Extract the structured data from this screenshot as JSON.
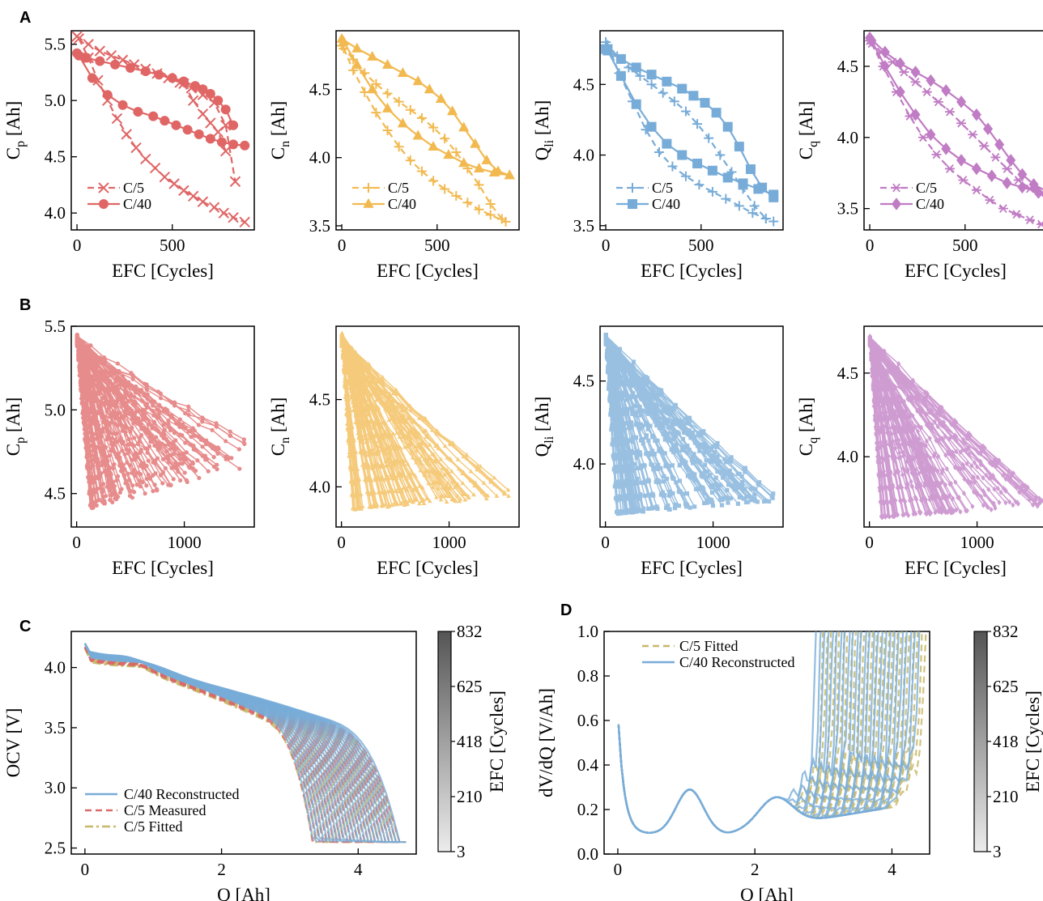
{
  "colors": {
    "red": "#e06666",
    "orange": "#f2b950",
    "blue": "#78acd8",
    "purple": "#c07cc4",
    "olive": "#c8b86a",
    "measured_red": "#d96a6a"
  },
  "chart_data": [
    {
      "id": "A1",
      "panel_label": "A",
      "type": "line",
      "xlabel": "EFC [Cycles]",
      "ylabel_main": "C",
      "ylabel_sub": "p",
      "ylabel_unit": "[Ah]",
      "xlim": [
        -30,
        930
      ],
      "ylim": [
        3.85,
        5.62
      ],
      "xticks": [
        0,
        500
      ],
      "xticklabels": [
        "0",
        "500"
      ],
      "yticks": [
        4.0,
        4.5,
        5.0,
        5.5
      ],
      "yticklabels": [
        "4.0",
        "4.5",
        "5.0",
        "5.5"
      ],
      "color": "red",
      "legend": "lower-left",
      "series": [
        {
          "name": "C/5",
          "style": "dashed",
          "marker": "x",
          "x": [
            0,
            60,
            120,
            180,
            240,
            300,
            360,
            420,
            480,
            540,
            600,
            660,
            720,
            780,
            830
          ],
          "y": [
            5.57,
            5.5,
            5.44,
            5.4,
            5.36,
            5.32,
            5.28,
            5.24,
            5.2,
            5.16,
            5.11,
            5.05,
            4.98,
            4.78,
            4.28
          ],
          "group": 0
        },
        {
          "name": "",
          "style": "dashed",
          "marker": "x",
          "x": [
            10,
            60,
            110,
            160,
            210,
            260,
            310,
            360,
            410,
            460,
            510,
            560,
            610,
            660,
            720,
            770,
            820,
            880
          ],
          "y": [
            5.55,
            5.38,
            5.18,
            5.0,
            4.84,
            4.7,
            4.58,
            4.48,
            4.4,
            4.32,
            4.26,
            4.2,
            4.15,
            4.1,
            4.05,
            4.0,
            3.96,
            3.92
          ],
          "group": 0
        },
        {
          "name": "",
          "style": "dashed",
          "marker": "x",
          "x": [
            560,
            610,
            660,
            700,
            740,
            780
          ],
          "y": [
            5.15,
            5.0,
            4.88,
            4.8,
            4.72,
            4.55
          ],
          "group": 0
        },
        {
          "name": "C/40",
          "style": "solid",
          "marker": "o",
          "x": [
            0,
            50,
            120,
            200,
            280,
            360,
            430,
            500,
            560,
            620,
            660,
            700,
            740,
            780,
            820
          ],
          "y": [
            5.42,
            5.38,
            5.35,
            5.32,
            5.29,
            5.26,
            5.23,
            5.2,
            5.17,
            5.13,
            5.1,
            5.06,
            5.0,
            4.92,
            4.78
          ],
          "group": 1
        },
        {
          "name": "",
          "style": "solid",
          "marker": "o",
          "x": [
            10,
            80,
            160,
            240,
            320,
            400,
            460,
            520,
            580,
            640,
            700,
            760,
            820,
            880
          ],
          "y": [
            5.4,
            5.2,
            5.05,
            4.96,
            4.9,
            4.86,
            4.82,
            4.78,
            4.74,
            4.7,
            4.66,
            4.63,
            4.61,
            4.6
          ],
          "group": 1
        }
      ]
    },
    {
      "id": "A2",
      "type": "line",
      "xlabel": "EFC [Cycles]",
      "ylabel_main": "C",
      "ylabel_sub": "n",
      "ylabel_unit": "[Ah]",
      "xlim": [
        -30,
        930
      ],
      "ylim": [
        3.47,
        4.93
      ],
      "xticks": [
        0,
        500
      ],
      "xticklabels": [
        "0",
        "500"
      ],
      "yticks": [
        3.5,
        4.0,
        4.5
      ],
      "yticklabels": [
        "3.5",
        "4.0",
        "4.5"
      ],
      "color": "orange",
      "legend": "lower-left",
      "series": [
        {
          "name": "C/5",
          "style": "dashed",
          "marker": "+",
          "x": [
            0,
            60,
            120,
            180,
            240,
            300,
            360,
            420,
            480,
            540,
            600,
            660,
            720,
            780,
            840
          ],
          "y": [
            4.82,
            4.72,
            4.62,
            4.54,
            4.47,
            4.41,
            4.35,
            4.29,
            4.22,
            4.14,
            4.04,
            3.92,
            3.8,
            3.66,
            3.55
          ],
          "group": 0
        },
        {
          "name": "",
          "style": "dashed",
          "marker": "+",
          "x": [
            10,
            60,
            120,
            180,
            240,
            300,
            360,
            420,
            480,
            540,
            600,
            660,
            720,
            780,
            860
          ],
          "y": [
            4.8,
            4.64,
            4.48,
            4.33,
            4.2,
            4.08,
            3.98,
            3.9,
            3.83,
            3.77,
            3.72,
            3.67,
            3.62,
            3.58,
            3.53
          ],
          "group": 0
        },
        {
          "name": "C/40",
          "style": "solid",
          "marker": "^",
          "x": [
            0,
            80,
            160,
            240,
            320,
            400,
            460,
            520,
            580,
            640,
            700,
            760,
            820,
            880
          ],
          "y": [
            4.87,
            4.8,
            4.74,
            4.68,
            4.62,
            4.56,
            4.5,
            4.43,
            4.34,
            4.22,
            4.1,
            3.98,
            3.9,
            3.87
          ],
          "group": 1
        },
        {
          "name": "",
          "style": "solid",
          "marker": "^",
          "x": [
            10,
            80,
            160,
            240,
            320,
            400,
            480,
            560,
            640,
            720,
            800,
            880
          ],
          "y": [
            4.85,
            4.68,
            4.5,
            4.36,
            4.25,
            4.16,
            4.08,
            4.02,
            3.96,
            3.92,
            3.89,
            3.87
          ],
          "group": 1
        }
      ]
    },
    {
      "id": "A3",
      "type": "line",
      "xlabel": "EFC [Cycles]",
      "ylabel_main": "Q",
      "ylabel_sub": "li",
      "ylabel_unit": "[Ah]",
      "xlim": [
        -30,
        930
      ],
      "ylim": [
        3.47,
        4.88
      ],
      "xticks": [
        0,
        500
      ],
      "xticklabels": [
        "0",
        "500"
      ],
      "yticks": [
        3.5,
        4.0,
        4.5
      ],
      "yticklabels": [
        "3.5",
        "4.0",
        "4.5"
      ],
      "color": "blue",
      "legend": "lower-left",
      "series": [
        {
          "name": "C/5",
          "style": "dashed",
          "marker": "+",
          "x": [
            0,
            60,
            120,
            180,
            240,
            300,
            360,
            420,
            480,
            540,
            600,
            660,
            720,
            780,
            840
          ],
          "y": [
            4.8,
            4.7,
            4.62,
            4.56,
            4.5,
            4.44,
            4.38,
            4.31,
            4.22,
            4.12,
            4.0,
            3.88,
            3.76,
            3.64,
            3.55
          ],
          "group": 0
        },
        {
          "name": "",
          "style": "dashed",
          "marker": "+",
          "x": [
            10,
            70,
            140,
            210,
            280,
            350,
            420,
            490,
            560,
            630,
            700,
            770,
            840,
            880
          ],
          "y": [
            4.78,
            4.58,
            4.38,
            4.18,
            4.02,
            3.92,
            3.85,
            3.79,
            3.74,
            3.69,
            3.64,
            3.59,
            3.55,
            3.53
          ],
          "group": 0
        },
        {
          "name": "C/40",
          "style": "solid",
          "marker": "s",
          "x": [
            0,
            80,
            160,
            240,
            320,
            400,
            460,
            520,
            580,
            640,
            700,
            760,
            820,
            880
          ],
          "y": [
            4.75,
            4.68,
            4.62,
            4.57,
            4.52,
            4.47,
            4.42,
            4.37,
            4.3,
            4.2,
            4.06,
            3.9,
            3.77,
            3.7
          ],
          "group": 1
        },
        {
          "name": "",
          "style": "solid",
          "marker": "s",
          "x": [
            10,
            80,
            160,
            240,
            320,
            400,
            480,
            560,
            640,
            720,
            800,
            880
          ],
          "y": [
            4.74,
            4.56,
            4.36,
            4.2,
            4.08,
            4.0,
            3.94,
            3.89,
            3.84,
            3.8,
            3.76,
            3.72
          ],
          "group": 1
        }
      ]
    },
    {
      "id": "A4",
      "type": "line",
      "xlabel": "EFC [Cycles]",
      "ylabel_main": "C",
      "ylabel_sub": "q",
      "ylabel_unit": "[Ah]",
      "xlim": [
        -30,
        930
      ],
      "ylim": [
        3.35,
        4.75
      ],
      "xticks": [
        0,
        500
      ],
      "xticklabels": [
        "0",
        "500"
      ],
      "yticks": [
        3.5,
        4.0,
        4.5
      ],
      "yticklabels": [
        "3.5",
        "4.0",
        "4.5"
      ],
      "color": "purple",
      "legend": "lower-left",
      "series": [
        {
          "name": "C/5",
          "style": "dashed",
          "marker": "*",
          "x": [
            0,
            60,
            120,
            180,
            240,
            300,
            360,
            420,
            480,
            540,
            600,
            660,
            720,
            780,
            840,
            900
          ],
          "y": [
            4.68,
            4.6,
            4.53,
            4.46,
            4.39,
            4.32,
            4.25,
            4.18,
            4.1,
            4.02,
            3.94,
            3.86,
            3.78,
            3.7,
            3.64,
            3.6
          ],
          "group": 0
        },
        {
          "name": "",
          "style": "dashed",
          "marker": "*",
          "x": [
            10,
            70,
            140,
            210,
            280,
            350,
            420,
            490,
            560,
            630,
            700,
            770,
            840,
            900
          ],
          "y": [
            4.66,
            4.5,
            4.32,
            4.15,
            4.0,
            3.88,
            3.78,
            3.7,
            3.63,
            3.56,
            3.5,
            3.46,
            3.42,
            3.39
          ],
          "group": 0
        },
        {
          "name": "C/40",
          "style": "solid",
          "marker": "D",
          "x": [
            0,
            80,
            160,
            240,
            320,
            400,
            480,
            560,
            620,
            680,
            740,
            800,
            860,
            930
          ],
          "y": [
            4.7,
            4.6,
            4.52,
            4.46,
            4.4,
            4.33,
            4.25,
            4.16,
            4.06,
            3.95,
            3.84,
            3.74,
            3.67,
            3.62
          ],
          "group": 1
        },
        {
          "name": "",
          "style": "solid",
          "marker": "D",
          "x": [
            10,
            80,
            160,
            240,
            320,
            400,
            480,
            560,
            640,
            720,
            800,
            880,
            930
          ],
          "y": [
            4.68,
            4.5,
            4.32,
            4.16,
            4.02,
            3.92,
            3.84,
            3.78,
            3.73,
            3.68,
            3.65,
            3.62,
            3.6
          ],
          "group": 1
        }
      ]
    },
    {
      "id": "B1",
      "panel_label": "B",
      "type": "line",
      "xlabel": "EFC [Cycles]",
      "ylabel_main": "C",
      "ylabel_sub": "p",
      "ylabel_unit": "[Ah]",
      "xlim": [
        -50,
        1650
      ],
      "ylim": [
        4.3,
        5.5
      ],
      "xticks": [
        0,
        1000
      ],
      "xticklabels": [
        "0",
        "1000"
      ],
      "yticks": [
        4.5,
        5.0,
        5.5
      ],
      "yticklabels": [
        "4.5",
        "5.0",
        "5.5"
      ],
      "color": "red",
      "marker": "o",
      "fan": {
        "count": 90,
        "x0": 0,
        "y0_range": [
          5.38,
          5.45
        ],
        "end_x_range": [
          120,
          1560
        ],
        "end_y_range": [
          4.35,
          4.85
        ]
      }
    },
    {
      "id": "B2",
      "type": "line",
      "xlabel": "EFC [Cycles]",
      "ylabel_main": "C",
      "ylabel_sub": "n",
      "ylabel_unit": "[Ah]",
      "xlim": [
        -50,
        1650
      ],
      "ylim": [
        3.77,
        4.92
      ],
      "xticks": [
        0,
        1000
      ],
      "xticklabels": [
        "0",
        "1000"
      ],
      "yticks": [
        4.0,
        4.5
      ],
      "yticklabels": [
        "4.0",
        "4.5"
      ],
      "color": "orange",
      "marker": "^",
      "fan": {
        "count": 90,
        "x0": 0,
        "y0_range": [
          4.8,
          4.88
        ],
        "end_x_range": [
          100,
          1560
        ],
        "end_y_range": [
          3.85,
          4.0
        ]
      }
    },
    {
      "id": "B3",
      "type": "line",
      "xlabel": "EFC [Cycles]",
      "ylabel_main": "Q",
      "ylabel_sub": "li",
      "ylabel_unit": "[Ah]",
      "xlim": [
        -50,
        1650
      ],
      "ylim": [
        3.62,
        4.83
      ],
      "xticks": [
        0,
        1000
      ],
      "xticklabels": [
        "0",
        "1000"
      ],
      "yticks": [
        4.0,
        4.5
      ],
      "yticklabels": [
        "4.0",
        "4.5"
      ],
      "color": "blue",
      "marker": "s",
      "fan": {
        "count": 90,
        "x0": 0,
        "y0_range": [
          4.72,
          4.78
        ],
        "end_x_range": [
          100,
          1560
        ],
        "end_y_range": [
          3.68,
          3.84
        ]
      }
    },
    {
      "id": "B4",
      "type": "line",
      "xlabel": "EFC [Cycles]",
      "ylabel_main": "C",
      "ylabel_sub": "q",
      "ylabel_unit": "[Ah]",
      "xlim": [
        -50,
        1650
      ],
      "ylim": [
        3.58,
        4.78
      ],
      "xticks": [
        0,
        1000
      ],
      "xticklabels": [
        "0",
        "1000"
      ],
      "yticks": [
        4.0,
        4.5
      ],
      "yticklabels": [
        "4.0",
        "4.5"
      ],
      "color": "purple",
      "marker": "D",
      "fan": {
        "count": 90,
        "x0": 0,
        "y0_range": [
          4.66,
          4.72
        ],
        "end_x_range": [
          100,
          1600
        ],
        "end_y_range": [
          3.62,
          3.76
        ]
      }
    },
    {
      "id": "C",
      "panel_label": "C",
      "type": "line",
      "xlabel": "Q [Ah]",
      "ylabel": "OCV [V]",
      "xlim": [
        -0.2,
        4.85
      ],
      "ylim": [
        2.45,
        4.3
      ],
      "xticks": [
        0,
        2,
        4
      ],
      "xticklabels": [
        "0",
        "2",
        "4"
      ],
      "yticks": [
        2.5,
        3.0,
        3.5,
        4.0
      ],
      "yticklabels": [
        "2.5",
        "3.0",
        "3.5",
        "4.0"
      ],
      "legend": "lower-left",
      "legend_entries": [
        {
          "label": "C/40 Reconstructed",
          "color": "blue",
          "style": "solid"
        },
        {
          "label": "C/5 Measured",
          "color": "measured_red",
          "style": "dashed"
        },
        {
          "label": "C/5 Fitted",
          "color": "olive",
          "style": "dashdot"
        }
      ],
      "curves": {
        "count": 26,
        "qmax_range": [
          3.4,
          4.7
        ]
      },
      "colorbar": {
        "label": "EFC [Cycles]",
        "ticks": [
          3,
          210,
          418,
          625,
          832
        ],
        "ticklabels": [
          "3",
          "210",
          "418",
          "625",
          "832"
        ],
        "range": [
          3,
          832
        ]
      }
    },
    {
      "id": "D",
      "panel_label": "D",
      "type": "line",
      "xlabel": "Q [Ah]",
      "ylabel": "dV/dQ [V/Ah]",
      "xlim": [
        -0.2,
        4.55
      ],
      "ylim": [
        0.0,
        1.0
      ],
      "xticks": [
        0,
        2,
        4
      ],
      "xticklabels": [
        "0",
        "2",
        "4"
      ],
      "yticks": [
        0.0,
        0.2,
        0.4,
        0.6,
        0.8,
        1.0
      ],
      "yticklabels": [
        "0.0",
        "0.2",
        "0.4",
        "0.6",
        "0.8",
        "1.0"
      ],
      "legend": "top-left",
      "legend_entries": [
        {
          "label": "C/5 Fitted",
          "color": "olive",
          "style": "dashed"
        },
        {
          "label": "C/40 Reconstructed",
          "color": "blue",
          "style": "solid"
        }
      ],
      "curves": {
        "count": 26,
        "qmax_range": [
          3.0,
          4.5
        ]
      },
      "colorbar": {
        "label": "EFC [Cycles]",
        "ticks": [
          3,
          210,
          418,
          625,
          832
        ],
        "ticklabels": [
          "3",
          "210",
          "418",
          "625",
          "832"
        ],
        "range": [
          3,
          832
        ]
      }
    }
  ]
}
